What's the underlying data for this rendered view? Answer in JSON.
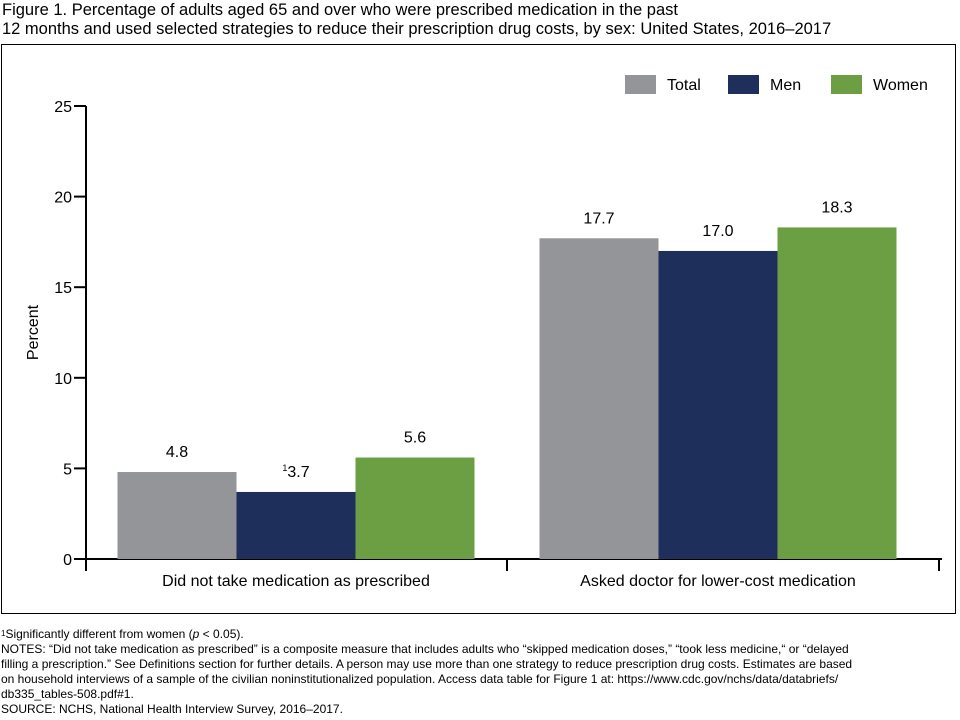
{
  "figure": {
    "title_line1": "Figure 1. Percentage of adults aged 65 and over who were prescribed medication in the past",
    "title_line2": "12 months and used selected strategies to reduce their prescription drug costs, by sex: United States, 2016–2017"
  },
  "chart_data": {
    "type": "bar",
    "title": "",
    "xlabel": "",
    "ylabel": "Percent",
    "ylim": [
      0,
      25
    ],
    "yticks": [
      0,
      5,
      10,
      15,
      20,
      25
    ],
    "grid": false,
    "legend_position": "top-right",
    "categories": [
      "Did not take medication as prescribed",
      "Asked doctor for lower-cost medication"
    ],
    "series": [
      {
        "name": "Total",
        "color": "#939598",
        "values": [
          4.8,
          17.7
        ],
        "labels": [
          "4.8",
          "17.7"
        ]
      },
      {
        "name": "Men",
        "color": "#1f2f5c",
        "values": [
          3.7,
          17.0
        ],
        "labels": [
          "3.7",
          "17.0"
        ],
        "footnote_marks": [
          "1",
          ""
        ]
      },
      {
        "name": "Women",
        "color": "#6c9f43",
        "values": [
          5.6,
          18.3
        ],
        "labels": [
          "5.6",
          "18.3"
        ]
      }
    ]
  },
  "notes": {
    "footnote_mark": "1",
    "footnote_text_before": "Significantly different from women (",
    "footnote_p": "p",
    "footnote_text_after": " < 0.05).",
    "notes_line1": "NOTES: “Did not take medication as prescribed” is a composite measure that includes adults who “skipped medication doses,” “took less medicine,“ or “delayed",
    "notes_line2": "filling a prescription.” See Definitions section for further details. A person may use more than one strategy to reduce prescription drug costs. Estimates are based",
    "notes_line3": "on household interviews of a sample of the civilian noninstitutionalized population. Access data table for Figure 1 at: https://www.cdc.gov/nchs/data/databriefs/",
    "notes_line4": "db335_tables-508.pdf#1.",
    "source": "SOURCE: NCHS, National Health Interview Survey, 2016–2017."
  }
}
